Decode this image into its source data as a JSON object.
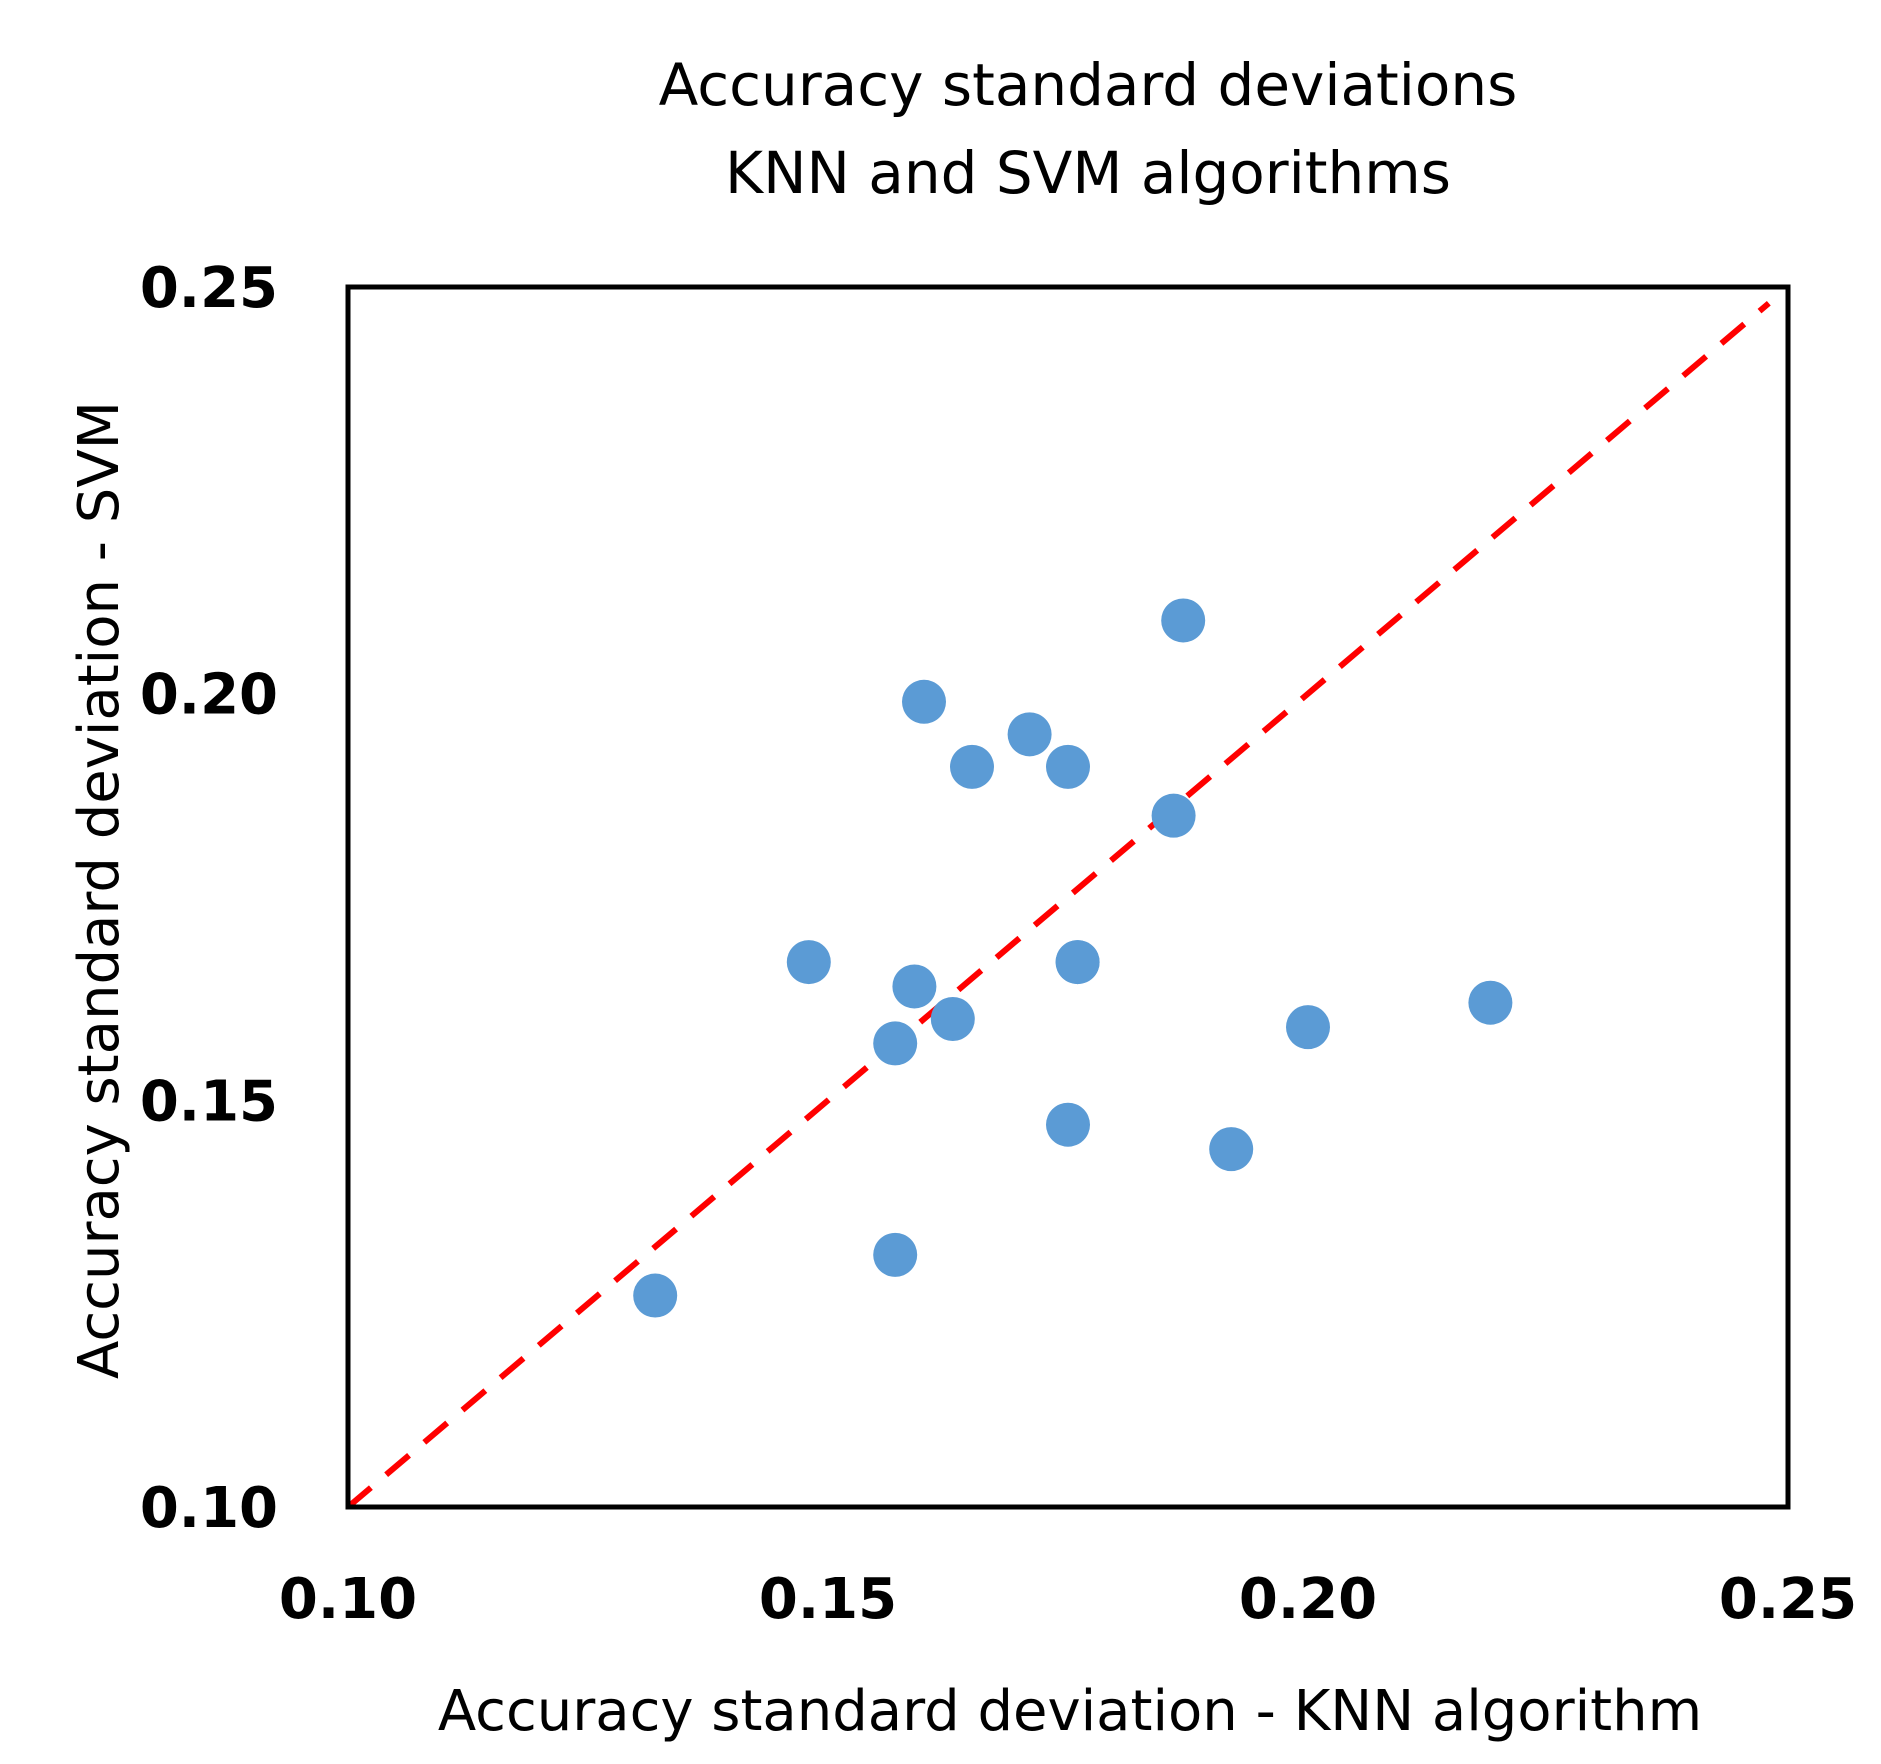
{
  "chart_data": {
    "type": "scatter",
    "title": [
      "Accuracy  standard deviations",
      "KNN and SVM algorithms"
    ],
    "xlabel": "Accuracy standard deviation - KNN algorithm",
    "ylabel": "Accuracy standard deviation -  SVM",
    "xlim": [
      0.1,
      0.25
    ],
    "ylim": [
      0.1,
      0.25
    ],
    "xticks": [
      "0.10",
      "0.15",
      "0.20",
      "0.25"
    ],
    "yticks": [
      "0.10",
      "0.15",
      "0.20",
      "0.25"
    ],
    "grid": false,
    "legend": "none",
    "marker_color": "#5b9bd5",
    "reference_line": {
      "style": "dashed",
      "color": "#ff0000",
      "x": [
        0.1,
        0.248
      ],
      "y": [
        0.1,
        0.248
      ]
    },
    "series": [
      {
        "x": [
          0.132,
          0.148,
          0.157,
          0.157,
          0.159,
          0.16,
          0.163,
          0.165,
          0.171,
          0.175,
          0.175,
          0.176,
          0.176,
          0.186,
          0.187,
          0.192,
          0.2,
          0.219
        ],
        "y": [
          0.126,
          0.167,
          0.131,
          0.157,
          0.164,
          0.199,
          0.16,
          0.191,
          0.195,
          0.191,
          0.147,
          0.167,
          0.167,
          0.185,
          0.209,
          0.144,
          0.159,
          0.162
        ]
      }
    ]
  }
}
